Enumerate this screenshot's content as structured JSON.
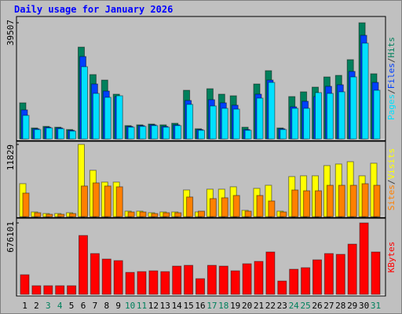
{
  "chart_data": [
    {
      "type": "bar",
      "title": "Daily usage for January 2026",
      "legend_separator": "/",
      "ylim": [
        0,
        39507
      ],
      "yticks": [
        39507
      ],
      "series": [
        {
          "name": "Hits",
          "color": "#00805c",
          "values": [
            12280,
            3740,
            4270,
            4000,
            3200,
            31230,
            21890,
            20020,
            15220,
            4540,
            4800,
            5070,
            4800,
            5340,
            16550,
            3470,
            17080,
            15220,
            14680,
            4000,
            18690,
            23220,
            3740,
            14410,
            16020,
            17620,
            21090,
            21620,
            26960,
            39507,
            22160
          ]
        },
        {
          "name": "Files",
          "color": "#0040ff",
          "values": [
            9880,
            3470,
            4000,
            3740,
            2940,
            28030,
            18690,
            16280,
            14410,
            4270,
            4540,
            4800,
            4270,
            4800,
            13080,
            3200,
            13350,
            12280,
            11480,
            3200,
            15220,
            20020,
            3470,
            10940,
            12810,
            14410,
            17890,
            18420,
            22960,
            35240,
            19220
          ]
        },
        {
          "name": "Pages",
          "color": "#00e0ff",
          "values": [
            8010,
            3200,
            3740,
            3470,
            2670,
            24560,
            15480,
            14150,
            14680,
            4000,
            4270,
            4540,
            4000,
            4540,
            11750,
            2940,
            11210,
            10410,
            10140,
            2940,
            13880,
            19220,
            3200,
            10410,
            10410,
            15750,
            15480,
            16020,
            21090,
            32570,
            16550
          ]
        }
      ]
    },
    {
      "type": "bar",
      "legend_separator": "/",
      "ylim": [
        0,
        11829
      ],
      "yticks": [
        11829
      ],
      "series": [
        {
          "name": "Visits",
          "color": "#ffff00",
          "values": [
            5400,
            770,
            510,
            510,
            640,
            11829,
            7590,
            5660,
            5660,
            900,
            900,
            640,
            770,
            770,
            4370,
            770,
            4500,
            4500,
            4890,
            1030,
            4630,
            5140,
            900,
            6560,
            6690,
            6690,
            8360,
            8620,
            9000,
            6690,
            8750
          ]
        },
        {
          "name": "Sites",
          "color": "#ff8000",
          "values": [
            3860,
            640,
            390,
            390,
            510,
            5020,
            5530,
            5020,
            4890,
            770,
            770,
            510,
            640,
            640,
            3220,
            900,
            2960,
            3090,
            3470,
            900,
            3470,
            2570,
            770,
            4370,
            4240,
            4240,
            5140,
            5140,
            5140,
            5400,
            5140
          ]
        }
      ]
    },
    {
      "type": "bar",
      "ylim": [
        0,
        676101
      ],
      "yticks": [
        676101
      ],
      "categories": [
        "1",
        "2",
        "3",
        "4",
        "5",
        "6",
        "7",
        "8",
        "9",
        "10",
        "11",
        "12",
        "13",
        "14",
        "15",
        "16",
        "17",
        "18",
        "19",
        "20",
        "21",
        "22",
        "23",
        "24",
        "25",
        "26",
        "27",
        "28",
        "29",
        "30",
        "31"
      ],
      "category_colors": [
        "#000000",
        "#000000",
        "#00805c",
        "#00805c",
        "#000000",
        "#000000",
        "#000000",
        "#000000",
        "#000000",
        "#00805c",
        "#00805c",
        "#000000",
        "#000000",
        "#000000",
        "#000000",
        "#000000",
        "#00805c",
        "#00805c",
        "#000000",
        "#000000",
        "#000000",
        "#000000",
        "#000000",
        "#00805c",
        "#00805c",
        "#000000",
        "#000000",
        "#000000",
        "#000000",
        "#000000",
        "#00805c"
      ],
      "series": [
        {
          "name": "KBytes",
          "color": "#ff0000",
          "values": [
            185750,
            81730,
            81730,
            81730,
            81730,
            557250,
            386360,
            334350,
            319490,
            208040,
            215470,
            222900,
            215470,
            267480,
            274910,
            148600,
            274910,
            267480,
            222900,
            289770,
            312060,
            401220,
            126310,
            237760,
            252620,
            326920,
            386360,
            378930,
            475520,
            676101,
            401220
          ]
        }
      ]
    }
  ]
}
